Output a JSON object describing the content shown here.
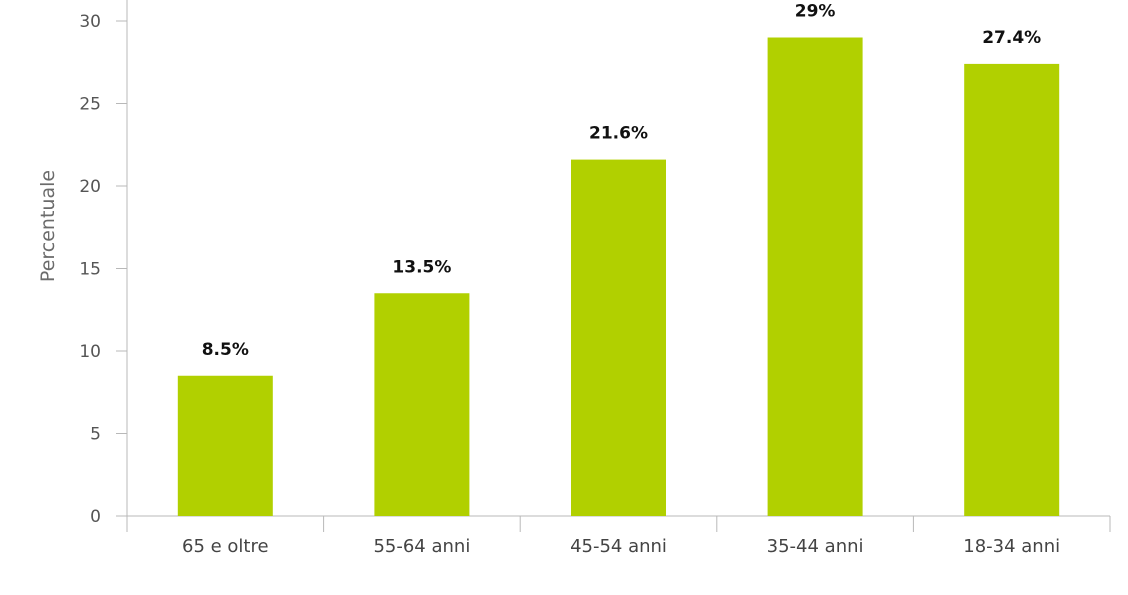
{
  "chart_data": {
    "type": "bar",
    "title": "",
    "xlabel": "",
    "ylabel": "Percentuale",
    "categories": [
      "65 e oltre",
      "55-64 anni",
      "45-54 anni",
      "35-44 anni",
      "18-34 anni"
    ],
    "values": [
      8.5,
      13.5,
      21.6,
      29,
      27.4
    ],
    "data_labels": [
      "8.5%",
      "13.5%",
      "21.6%",
      "29%",
      "27.4%"
    ],
    "ylim": [
      0,
      30
    ],
    "yticks": [
      0,
      5,
      10,
      15,
      20,
      25,
      30
    ],
    "grid": false,
    "legend": "none",
    "bar_color": "#b1d000"
  }
}
